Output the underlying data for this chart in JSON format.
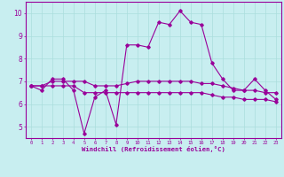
{
  "xlabel": "Windchill (Refroidissement éolien,°C)",
  "background_color": "#c8eef0",
  "grid_color": "#aadddd",
  "line_color": "#990099",
  "x": [
    0,
    1,
    2,
    3,
    4,
    5,
    6,
    7,
    8,
    9,
    10,
    11,
    12,
    13,
    14,
    15,
    16,
    17,
    18,
    19,
    20,
    21,
    22,
    23
  ],
  "line1": [
    6.8,
    6.6,
    7.1,
    7.1,
    6.6,
    4.7,
    6.3,
    6.6,
    5.1,
    8.6,
    8.6,
    8.5,
    9.6,
    9.5,
    10.1,
    9.6,
    9.5,
    7.8,
    7.1,
    6.6,
    6.6,
    7.1,
    6.6,
    6.2
  ],
  "line2": [
    6.8,
    6.8,
    7.0,
    7.0,
    7.0,
    7.0,
    6.8,
    6.8,
    6.8,
    6.9,
    7.0,
    7.0,
    7.0,
    7.0,
    7.0,
    7.0,
    6.9,
    6.9,
    6.8,
    6.7,
    6.6,
    6.6,
    6.5,
    6.5
  ],
  "line3": [
    6.8,
    6.8,
    6.8,
    6.8,
    6.8,
    6.5,
    6.5,
    6.5,
    6.5,
    6.5,
    6.5,
    6.5,
    6.5,
    6.5,
    6.5,
    6.5,
    6.5,
    6.4,
    6.3,
    6.3,
    6.2,
    6.2,
    6.2,
    6.1
  ],
  "ylim": [
    4.5,
    10.5
  ],
  "yticks": [
    5,
    6,
    7,
    8,
    9,
    10
  ],
  "xticks": [
    0,
    1,
    2,
    3,
    4,
    5,
    6,
    7,
    8,
    9,
    10,
    11,
    12,
    13,
    14,
    15,
    16,
    17,
    18,
    19,
    20,
    21,
    22,
    23
  ],
  "tick_color": "#990099",
  "label_color": "#990099",
  "spine_color": "#990099"
}
